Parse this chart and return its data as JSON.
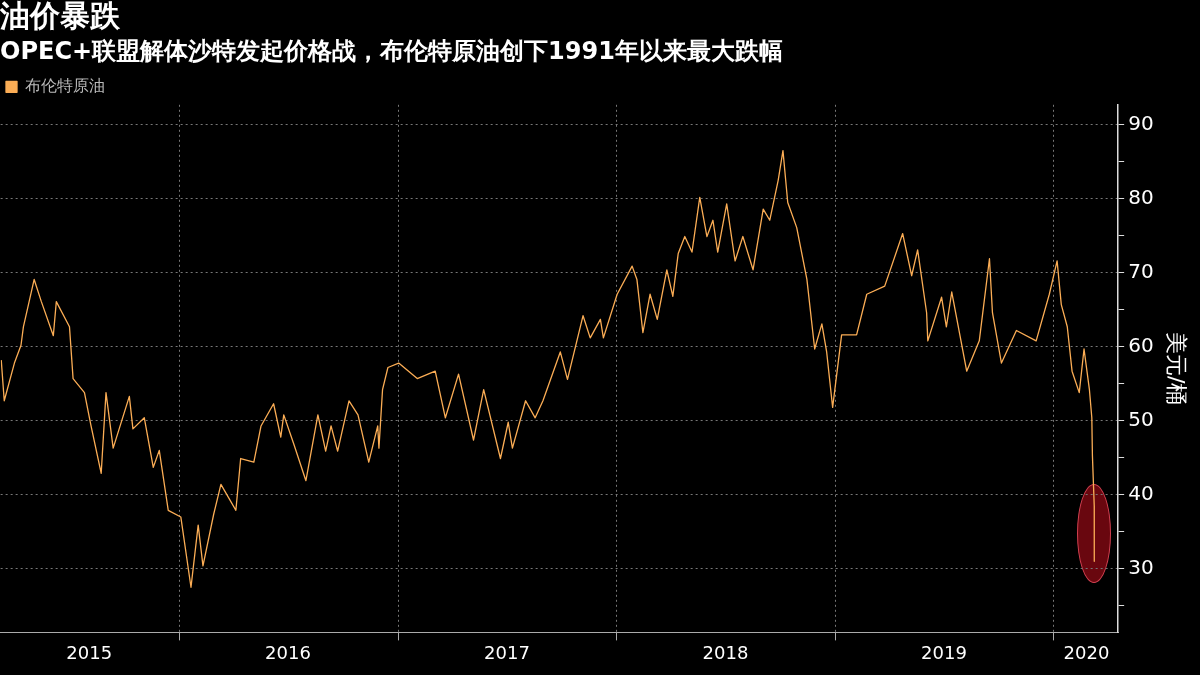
{
  "chart_data": {
    "type": "line",
    "title": "油价暴跌",
    "subtitle": "OPEC+联盟解体沙特发起价格战，布伦特原油创下1991年以来最大跌幅",
    "ylabel": "美元/桶",
    "x": [
      "2015-03-10",
      "2015-03-15",
      "2015-04-01",
      "2015-04-12",
      "2015-04-16",
      "2015-05-04",
      "2015-05-16",
      "2015-06-05",
      "2015-06-10",
      "2015-07-02",
      "2015-07-08",
      "2015-07-27",
      "2015-08-07",
      "2015-08-24",
      "2015-09-01",
      "2015-09-13",
      "2015-10-10",
      "2015-10-16",
      "2015-11-04",
      "2015-11-19",
      "2015-11-29",
      "2015-12-14",
      "2016-01-04",
      "2016-01-21",
      "2016-02-02",
      "2016-02-10",
      "2016-02-28",
      "2016-03-11",
      "2016-04-05",
      "2016-04-13",
      "2016-05-05",
      "2016-05-17",
      "2016-06-07",
      "2016-06-19",
      "2016-06-24",
      "2016-07-11",
      "2016-07-31",
      "2016-08-20",
      "2016-09-02",
      "2016-09-11",
      "2016-09-22",
      "2016-10-11",
      "2016-10-26",
      "2016-11-13",
      "2016-11-28",
      "2016-11-30",
      "2016-12-06",
      "2016-12-15",
      "2017-01-02",
      "2017-02-02",
      "2017-03-04",
      "2017-03-21",
      "2017-04-12",
      "2017-05-07",
      "2017-05-24",
      "2017-06-21",
      "2017-07-04",
      "2017-07-11",
      "2017-08-02",
      "2017-08-18",
      "2017-08-31",
      "2017-09-29",
      "2017-10-11",
      "2017-11-06",
      "2017-11-18",
      "2017-12-05",
      "2017-12-10",
      "2018-01-02",
      "2018-01-27",
      "2018-02-04",
      "2018-02-14",
      "2018-02-26",
      "2018-03-10",
      "2018-03-26",
      "2018-04-05",
      "2018-04-14",
      "2018-04-25",
      "2018-05-07",
      "2018-05-20",
      "2018-06-01",
      "2018-06-11",
      "2018-06-19",
      "2018-07-04",
      "2018-07-18",
      "2018-07-31",
      "2018-08-17",
      "2018-09-03",
      "2018-09-14",
      "2018-09-28",
      "2018-10-06",
      "2018-10-14",
      "2018-10-29",
      "2018-11-15",
      "2018-11-28",
      "2018-12-10",
      "2018-12-18",
      "2018-12-28",
      "2019-01-12",
      "2019-02-06",
      "2019-02-23",
      "2019-03-25",
      "2019-04-24",
      "2019-05-09",
      "2019-05-19",
      "2019-06-03",
      "2019-06-05",
      "2019-06-28",
      "2019-07-06",
      "2019-07-15",
      "2019-08-09",
      "2019-08-30",
      "2019-09-16",
      "2019-09-21",
      "2019-10-06",
      "2019-10-31",
      "2019-12-03",
      "2019-12-25",
      "2020-01-07",
      "2020-01-14",
      "2020-01-24",
      "2020-02-01",
      "2020-02-13",
      "2020-02-21",
      "2020-03-01",
      "2020-03-05",
      "2020-03-06",
      "2020-03-09T01:00",
      "2020-03-09T02:00",
      "2020-03-09T03:00"
    ],
    "series": [
      {
        "name": "布伦特原油",
        "color": "#fbad55",
        "values": [
          58.2,
          52.7,
          57.8,
          60.2,
          62.7,
          69.1,
          66.1,
          61.5,
          66.1,
          62.7,
          55.7,
          53.8,
          49.3,
          42.9,
          53.8,
          46.3,
          53.3,
          48.9,
          50.4,
          43.7,
          46.0,
          37.9,
          37.0,
          27.5,
          35.9,
          30.4,
          37.4,
          41.4,
          37.9,
          44.9,
          44.4,
          49.3,
          52.3,
          47.8,
          50.8,
          46.8,
          41.9,
          50.8,
          45.9,
          49.3,
          45.9,
          52.7,
          50.8,
          44.4,
          49.3,
          46.3,
          54.2,
          57.2,
          57.8,
          55.7,
          56.7,
          50.4,
          56.3,
          47.4,
          54.2,
          44.9,
          49.8,
          46.3,
          52.7,
          50.4,
          52.7,
          59.3,
          55.6,
          64.2,
          61.2,
          63.7,
          61.2,
          67.1,
          70.9,
          69.1,
          61.9,
          67.1,
          63.7,
          70.4,
          66.8,
          72.6,
          74.9,
          72.8,
          80.2,
          74.9,
          77.1,
          72.8,
          79.3,
          71.6,
          74.9,
          70.4,
          78.6,
          77.1,
          82.5,
          86.5,
          79.5,
          76.1,
          69.1,
          59.7,
          63.1,
          59.3,
          51.8,
          61.6,
          61.6,
          67.1,
          68.2,
          75.3,
          69.6,
          73.1,
          64.6,
          60.8,
          66.7,
          62.7,
          67.4,
          56.7,
          60.8,
          71.9,
          64.6,
          57.8,
          62.2,
          60.8,
          67.1,
          71.6,
          65.7,
          62.7,
          56.7,
          53.8,
          59.7,
          54.2,
          50.4,
          45.3,
          38.5,
          31.0,
          36.4
        ]
      }
    ],
    "xlim": [
      "2015-03-09",
      "2020-04-18"
    ],
    "xticks": [
      {
        "value": "2015-08-04",
        "label": "2015"
      },
      {
        "value": "2016-01-01",
        "label": null
      },
      {
        "value": "2016-07-01",
        "label": "2016"
      },
      {
        "value": "2017-01-01",
        "label": null
      },
      {
        "value": "2017-07-02",
        "label": "2017"
      },
      {
        "value": "2018-01-01",
        "label": null
      },
      {
        "value": "2018-07-02",
        "label": "2018"
      },
      {
        "value": "2019-01-01",
        "label": null
      },
      {
        "value": "2019-07-02",
        "label": "2019"
      },
      {
        "value": "2020-01-01",
        "label": null
      },
      {
        "value": "2020-02-25",
        "label": "2020"
      }
    ],
    "ylim": [
      21.4,
      92.7
    ],
    "yticks": [
      {
        "value": 25,
        "label": null
      },
      30,
      {
        "value": 35,
        "label": null
      },
      40,
      {
        "value": 45,
        "label": null
      },
      50,
      {
        "value": 55,
        "label": null
      },
      60,
      {
        "value": 65,
        "label": null
      },
      70,
      {
        "value": 75,
        "label": null
      },
      80,
      {
        "value": 85,
        "label": null
      },
      90
    ],
    "grid": true,
    "legend": "top left"
  }
}
